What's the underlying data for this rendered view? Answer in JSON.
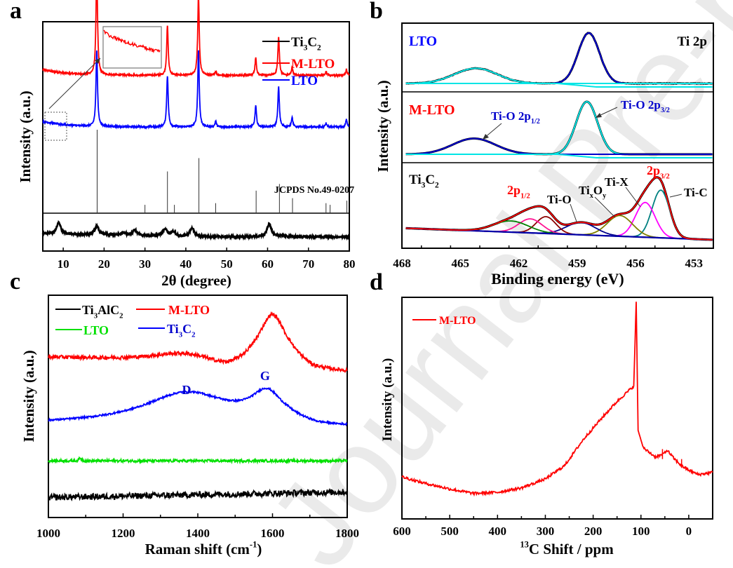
{
  "watermark": "Journal Pre-proof",
  "chart_data": [
    {
      "panel": "a",
      "type": "line",
      "xlabel": "2θ (degree)",
      "ylabel": "Intensity (a.u.)",
      "xlim": [
        5,
        80
      ],
      "xticks": [
        10,
        20,
        30,
        40,
        50,
        60,
        70,
        80
      ],
      "legend": {
        "placement": "top-right",
        "entries": [
          {
            "label": "Ti3C2",
            "label_main": "Ti",
            "sub1": "3",
            "mid": "C",
            "sub2": "2",
            "color": "#000000"
          },
          {
            "label": "M-LTO",
            "color": "#ff0000"
          },
          {
            "label": "LTO",
            "color": "#0000ff"
          }
        ]
      },
      "reference_label": "JCPDS No.49-0207",
      "reference_peaks": [
        {
          "x": 18.3,
          "h": 1.0
        },
        {
          "x": 30.0,
          "h": 0.1
        },
        {
          "x": 35.5,
          "h": 0.5
        },
        {
          "x": 37.2,
          "h": 0.1
        },
        {
          "x": 43.2,
          "h": 0.66
        },
        {
          "x": 47.3,
          "h": 0.12
        },
        {
          "x": 57.2,
          "h": 0.27
        },
        {
          "x": 62.9,
          "h": 0.35
        },
        {
          "x": 66.1,
          "h": 0.18
        },
        {
          "x": 74.3,
          "h": 0.12
        },
        {
          "x": 75.3,
          "h": 0.1
        },
        {
          "x": 79.4,
          "h": 0.15
        }
      ],
      "series": [
        {
          "name": "M-LTO",
          "color": "#ff0000",
          "baseline": 0.72,
          "peaks": [
            {
              "x": 18.2,
              "h": 0.56
            },
            {
              "x": 35.5,
              "h": 0.26
            },
            {
              "x": 43.1,
              "h": 0.42
            },
            {
              "x": 47.3,
              "h": 0.02
            },
            {
              "x": 57.1,
              "h": 0.09
            },
            {
              "x": 62.7,
              "h": 0.2
            },
            {
              "x": 66.0,
              "h": 0.04
            },
            {
              "x": 74.3,
              "h": 0.02
            },
            {
              "x": 79.3,
              "h": 0.03
            }
          ]
        },
        {
          "name": "LTO",
          "color": "#0000ff",
          "baseline": 0.45,
          "peaks": [
            {
              "x": 18.2,
              "h": 0.4
            },
            {
              "x": 35.5,
              "h": 0.27
            },
            {
              "x": 43.1,
              "h": 0.4
            },
            {
              "x": 47.3,
              "h": 0.03
            },
            {
              "x": 57.1,
              "h": 0.11
            },
            {
              "x": 62.7,
              "h": 0.21
            },
            {
              "x": 66.0,
              "h": 0.05
            },
            {
              "x": 74.3,
              "h": 0.02
            },
            {
              "x": 79.3,
              "h": 0.04
            }
          ]
        },
        {
          "name": "Ti3C2",
          "color": "#000000",
          "baseline": 0.06,
          "peaks": [
            {
              "x": 8.9,
              "h": 0.08
            },
            {
              "x": 18.2,
              "h": 0.06
            },
            {
              "x": 24.7,
              "h": 0.02
            },
            {
              "x": 27.5,
              "h": 0.04
            },
            {
              "x": 34.9,
              "h": 0.05
            },
            {
              "x": 36.9,
              "h": 0.03
            },
            {
              "x": 41.5,
              "h": 0.06
            },
            {
              "x": 60.4,
              "h": 0.09
            },
            {
              "x": 63.5,
              "h": 0.01
            }
          ]
        }
      ],
      "inset": {
        "description": "magnified M-LTO low-angle region",
        "color": "#ff0000"
      }
    },
    {
      "panel": "b",
      "type": "line",
      "xlabel": "Binding energy (eV)",
      "ylabel": "Intensity (a.u.)",
      "xlim": [
        468,
        452
      ],
      "xticks": [
        468,
        465,
        462,
        459,
        456,
        453
      ],
      "annotation_corner": "Ti 2p",
      "subpanels": [
        {
          "name": "LTO",
          "label_color": "#0000ff",
          "peaks": [
            {
              "center": 458.4,
              "height": 1.0,
              "width": 0.55,
              "color": "#0000cc"
            },
            {
              "center": 464.2,
              "height": 0.3,
              "width": 1.1,
              "color": "#00e5e5"
            }
          ]
        },
        {
          "name": "M-LTO",
          "label_color": "#ff0000",
          "peaks": [
            {
              "center": 458.5,
              "height": 1.0,
              "width": 0.55,
              "color": "#00e5e5",
              "label": "Ti-O 2p3/2"
            },
            {
              "center": 464.3,
              "height": 0.3,
              "width": 1.1,
              "color": "#0000cc",
              "label": "Ti-O 2p1/2"
            }
          ]
        },
        {
          "name": "Ti3C2",
          "label_color": "#000000",
          "components": [
            {
              "label": "Ti-C",
              "center": 454.7,
              "height": 0.85,
              "width": 0.45,
              "color": "#008080"
            },
            {
              "label": "Ti-X",
              "center": 455.5,
              "height": 0.62,
              "width": 0.5,
              "color": "#ff00ff"
            },
            {
              "label": "TixOy",
              "center": 456.8,
              "height": 0.37,
              "width": 0.65,
              "color": "#808000"
            },
            {
              "label": "Ti-O",
              "center": 458.8,
              "height": 0.22,
              "width": 0.75,
              "color": "#00008b"
            },
            {
              "label": "Ti-C 2p1/2",
              "center": 460.6,
              "height": 0.3,
              "width": 0.5,
              "color": "#8b0000"
            },
            {
              "label": "Ti-X 2p1/2",
              "center": 461.4,
              "height": 0.25,
              "width": 0.6,
              "color": "#ff1493"
            },
            {
              "label": "TixOy 2p1/2",
              "center": 462.4,
              "height": 0.2,
              "width": 0.9,
              "color": "#008000"
            }
          ],
          "envelope_color": "#ff0000",
          "labels": {
            "2p32": "2p",
            "sub32": "3/2",
            "2p12": "2p",
            "sub12": "1/2"
          }
        }
      ]
    },
    {
      "panel": "c",
      "type": "line",
      "xlabel": "Raman shift (cm⁻¹)",
      "ylabel": "Intensity (a.u.)",
      "xlim": [
        1000,
        1800
      ],
      "xticks": [
        1000,
        1200,
        1400,
        1600,
        1800
      ],
      "legend": {
        "placement": "top-left",
        "entries": [
          {
            "label": "Ti3AlC2",
            "color": "#000000"
          },
          {
            "label": "M-LTO",
            "color": "#ff0000"
          },
          {
            "label": "LTO",
            "color": "#00e000"
          },
          {
            "label": "Ti3C2",
            "color": "#0000ff"
          }
        ]
      },
      "annotations": [
        {
          "text": "D",
          "x": 1370
        },
        {
          "text": "G",
          "x": 1580
        }
      ],
      "series": [
        {
          "name": "M-LTO",
          "color": "#ff0000",
          "baseline": 0.72,
          "bands": [
            {
              "center": 1350,
              "h": 0.03,
              "w": 90
            },
            {
              "center": 1600,
              "h": 0.22,
              "w": 45
            }
          ],
          "slope": -0.04,
          "noise": 0.008
        },
        {
          "name": "Ti3C2",
          "color": "#0000ff",
          "baseline": 0.42,
          "bands": [
            {
              "center": 1370,
              "h": 0.14,
              "w": 140
            },
            {
              "center": 1585,
              "h": 0.12,
              "w": 50
            }
          ],
          "slope": 0.0,
          "noise": 0.004
        },
        {
          "name": "LTO",
          "color": "#00e000",
          "baseline": 0.255,
          "bands": [
            {
              "center": 1085,
              "h": 0.01,
              "w": 5
            }
          ],
          "slope": 0.0,
          "noise": 0.006
        },
        {
          "name": "Ti3AlC2",
          "color": "#000000",
          "baseline": 0.09,
          "bands": [],
          "slope": 0.025,
          "noise": 0.014
        }
      ]
    },
    {
      "panel": "d",
      "type": "line",
      "xlabel": "13C Shift / ppm",
      "xlabel_sup": "13",
      "xlabel_main": "C Shift / ppm",
      "ylabel": "Intensity (a.u.)",
      "xlim": [
        600,
        -50
      ],
      "xticks": [
        600,
        500,
        400,
        300,
        200,
        100,
        0
      ],
      "legend": {
        "placement": "top-left",
        "entries": [
          {
            "label": "M-LTO",
            "color": "#ff0000"
          }
        ]
      },
      "series": [
        {
          "name": "M-LTO",
          "color": "#ff0000",
          "points": [
            [
              600,
              0.19
            ],
            [
              560,
              0.165
            ],
            [
              500,
              0.135
            ],
            [
              450,
              0.115
            ],
            [
              400,
              0.12
            ],
            [
              350,
              0.14
            ],
            [
              300,
              0.18
            ],
            [
              260,
              0.24
            ],
            [
              220,
              0.36
            ],
            [
              180,
              0.46
            ],
            [
              150,
              0.53
            ],
            [
              125,
              0.58
            ],
            [
              115,
              0.6
            ],
            [
              110,
              0.98
            ],
            [
              106,
              0.4
            ],
            [
              95,
              0.32
            ],
            [
              70,
              0.28
            ],
            [
              55,
              0.29
            ],
            [
              45,
              0.31
            ],
            [
              30,
              0.27
            ],
            [
              15,
              0.24
            ],
            [
              0,
              0.22
            ],
            [
              -20,
              0.2
            ],
            [
              -50,
              0.21
            ]
          ]
        }
      ]
    }
  ],
  "panels": {
    "a": {
      "letter": "a"
    },
    "b": {
      "letter": "b"
    },
    "c": {
      "letter": "c"
    },
    "d": {
      "letter": "d"
    }
  }
}
